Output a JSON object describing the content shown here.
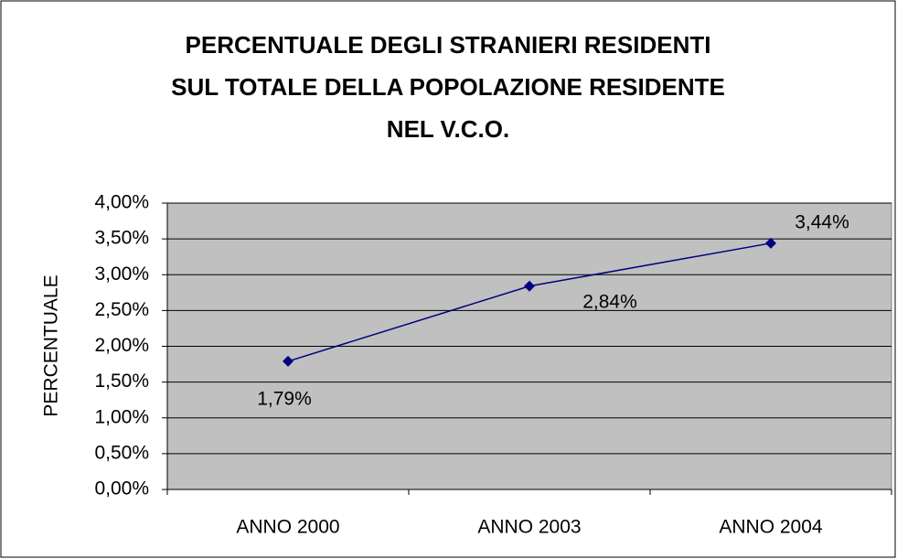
{
  "chart_data": {
    "type": "line",
    "title": [
      "PERCENTUALE DEGLI STRANIERI RESIDENTI",
      "SUL TOTALE DELLA POPOLAZIONE RESIDENTE",
      "NEL V.C.O."
    ],
    "ylabel": "PERCENTUALE",
    "categories": [
      "ANNO 2000",
      "ANNO 2003",
      "ANNO 2004"
    ],
    "values": [
      1.79,
      2.84,
      3.44
    ],
    "value_labels": [
      "1,79%",
      "2,84%",
      "3,44%"
    ],
    "color": "#000080",
    "ylim": [
      0,
      4
    ],
    "yticks": [
      {
        "value": 0,
        "label": "0,00%"
      },
      {
        "value": 0.5,
        "label": "0,50%"
      },
      {
        "value": 1,
        "label": "1,00%"
      },
      {
        "value": 1.5,
        "label": "1,50%"
      },
      {
        "value": 2,
        "label": "2,00%"
      },
      {
        "value": 2.5,
        "label": "2,50%"
      },
      {
        "value": 3,
        "label": "3,00%"
      },
      {
        "value": 3.5,
        "label": "3,50%"
      },
      {
        "value": 4,
        "label": "4,00%"
      }
    ],
    "grid": true
  }
}
